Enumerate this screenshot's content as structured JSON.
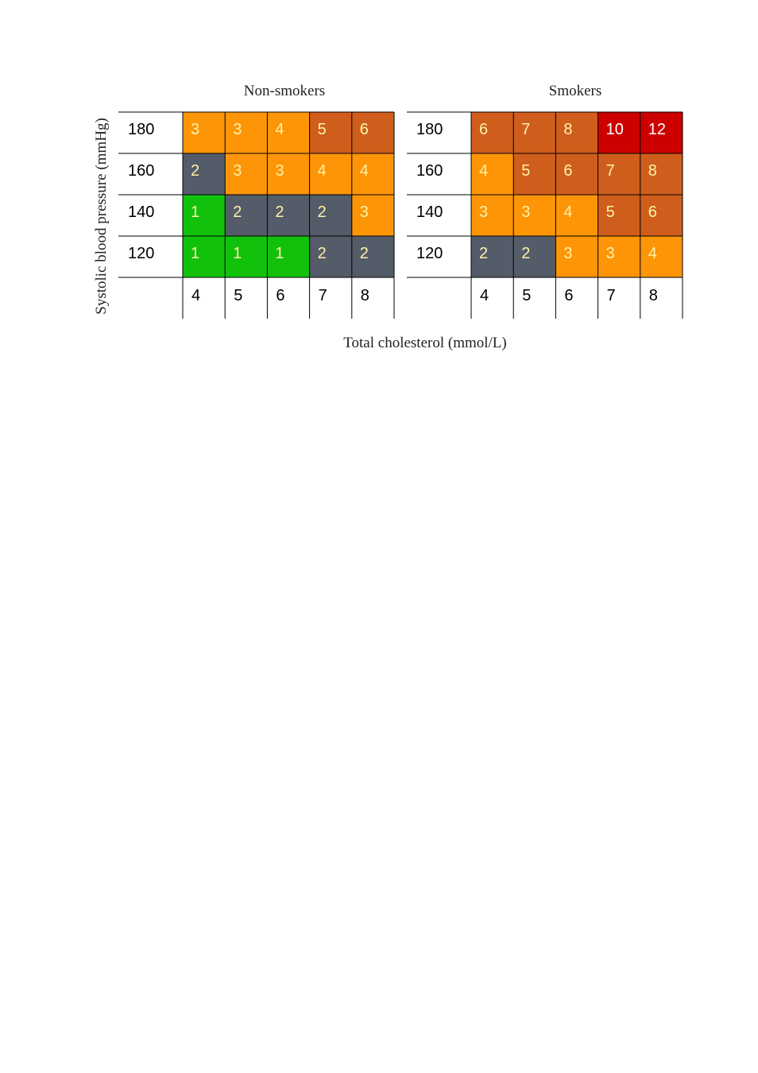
{
  "chart_data": {
    "type": "heatmap",
    "ylabel": "Systolic blood pressure (mmHg)",
    "xlabel": "Total cholesterol (mmol/L)",
    "y_categories": [
      "180",
      "160",
      "140",
      "120"
    ],
    "x_categories": [
      "4",
      "5",
      "6",
      "7",
      "8"
    ],
    "panels": [
      {
        "title": "Non-smokers",
        "values": [
          [
            3,
            3,
            4,
            5,
            6
          ],
          [
            2,
            3,
            3,
            4,
            4
          ],
          [
            1,
            2,
            2,
            2,
            3
          ],
          [
            1,
            1,
            1,
            2,
            2
          ]
        ]
      },
      {
        "title": "Smokers",
        "values": [
          [
            6,
            7,
            8,
            10,
            12
          ],
          [
            4,
            5,
            6,
            7,
            8
          ],
          [
            3,
            3,
            4,
            5,
            6
          ],
          [
            2,
            2,
            3,
            3,
            4
          ]
        ]
      }
    ],
    "color_scale": [
      {
        "value": 1,
        "color": "#12c10c"
      },
      {
        "value": 2,
        "color": "#545c69"
      },
      {
        "value": 3,
        "color": "#fd9507"
      },
      {
        "value": 4,
        "color": "#fd9507"
      },
      {
        "value": 5,
        "color": "#cf5e1d"
      },
      {
        "value": 6,
        "color": "#cf5e1d"
      },
      {
        "value": 7,
        "color": "#cf5e1d"
      },
      {
        "value": 8,
        "color": "#cf5e1d"
      },
      {
        "value": 10,
        "color": "#cd0000"
      },
      {
        "value": 12,
        "color": "#cd0000"
      }
    ],
    "cell_text_color": "#fff3a8",
    "high_cell_text_color": "#ffffff"
  }
}
